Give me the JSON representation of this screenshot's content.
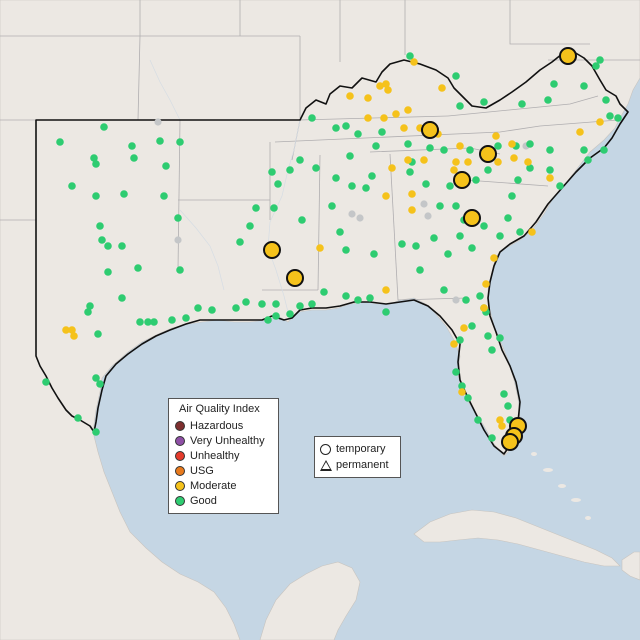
{
  "legend": {
    "title": "Air Quality Index",
    "categories": [
      {
        "label": "Hazardous",
        "color": "#7e2f2f"
      },
      {
        "label": "Very Unhealthy",
        "color": "#8e4fa5"
      },
      {
        "label": "Unhealthy",
        "color": "#e53b2c"
      },
      {
        "label": "USG",
        "color": "#e87a1d"
      },
      {
        "label": "Moderate",
        "color": "#f5c21b"
      },
      {
        "label": "Good",
        "color": "#2ecc71"
      }
    ],
    "types": {
      "temporary": "temporary",
      "permanent": "permanent"
    }
  },
  "colors": {
    "water": "#c5d6e4",
    "land": "#ece8e3",
    "state_border": "#b0aeb0",
    "region_outline": "#111111",
    "good": "#2ecc71",
    "moderate": "#f5c21b",
    "no_data": "#c4c6c8"
  }
}
